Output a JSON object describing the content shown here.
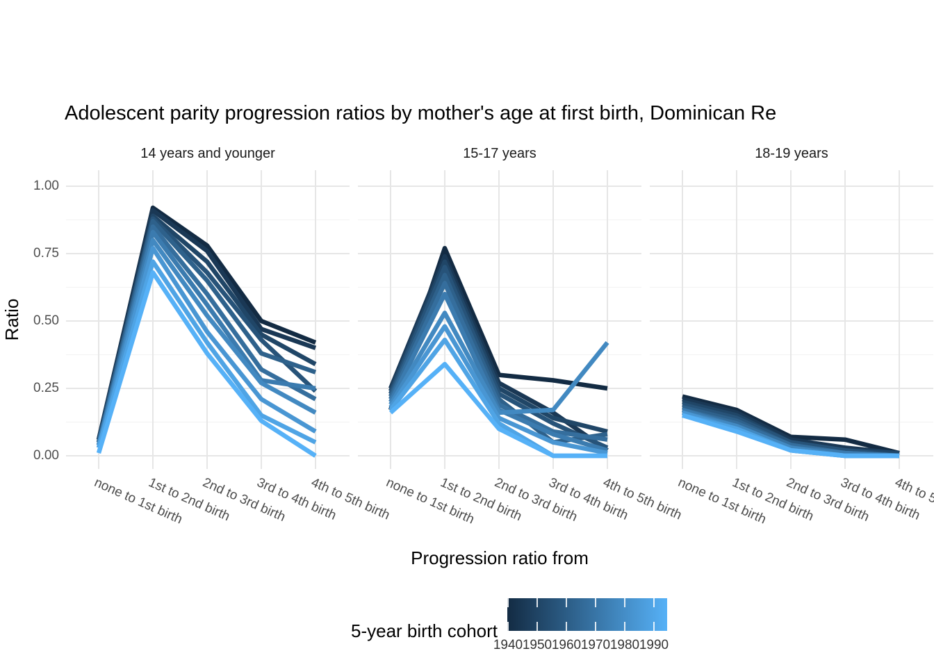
{
  "chart": {
    "title": "Adolescent parity progression ratios by mother's age at first birth,  Dominican Re",
    "xlabel": "Progression ratio from",
    "ylabel": "Ratio",
    "legend_title": "5-year birth cohort"
  },
  "chart_data": {
    "type": "line",
    "title": "Adolescent parity progression ratios by mother's age at first birth,  Dominican Re",
    "xlabel": "Progression ratio from",
    "ylabel": "Ratio",
    "categories": [
      "none to 1st birth",
      "1st to 2nd birth",
      "2nd to 3rd birth",
      "3rd to 4th birth",
      "4th to 5th birth"
    ],
    "ylim": [
      0,
      1
    ],
    "y_major_ticks": [
      0,
      0.25,
      0.5,
      0.75,
      1.0
    ],
    "y_minor_ticks": [
      0.125,
      0.375,
      0.625,
      0.875
    ],
    "y_tick_labels": [
      "0.00",
      "0.25",
      "0.50",
      "0.75",
      "1.00"
    ],
    "grid": {
      "major_color": "#E6E6E6",
      "minor_color": "#F2F2F2",
      "background": "#FFFFFF"
    },
    "legend": {
      "title": "5-year birth cohort",
      "style": "colorbar",
      "position": "bottom",
      "low_color": "#132B43",
      "high_color": "#56B1F7",
      "ticks": [
        "1940",
        "1950",
        "1960",
        "1970",
        "1980",
        "1990"
      ]
    },
    "facets": [
      {
        "label": "14 years and younger",
        "series": [
          {
            "name": "1940",
            "color": "#132B43",
            "values": [
              0.06,
              0.92,
              0.78,
              0.5,
              0.42
            ]
          },
          {
            "name": "1945",
            "color": "#1A3855",
            "values": [
              0.06,
              0.91,
              0.76,
              0.47,
              0.4
            ]
          },
          {
            "name": "1950",
            "color": "#204667",
            "values": [
              0.05,
              0.89,
              0.72,
              0.45,
              0.34
            ]
          },
          {
            "name": "1955",
            "color": "#275379",
            "values": [
              0.05,
              0.88,
              0.68,
              0.43,
              0.24
            ]
          },
          {
            "name": "1960",
            "color": "#2E618B",
            "values": [
              0.05,
              0.87,
              0.65,
              0.38,
              0.31
            ]
          },
          {
            "name": "1965",
            "color": "#356E9D",
            "values": [
              0.04,
              0.85,
              0.6,
              0.32,
              0.21
            ]
          },
          {
            "name": "1970",
            "color": "#3B7BAF",
            "values": [
              0.04,
              0.83,
              0.56,
              0.28,
              0.25
            ]
          },
          {
            "name": "1975",
            "color": "#4289C1",
            "values": [
              0.04,
              0.8,
              0.52,
              0.27,
              0.16
            ]
          },
          {
            "name": "1980",
            "color": "#4996D3",
            "values": [
              0.03,
              0.77,
              0.46,
              0.21,
              0.09
            ]
          },
          {
            "name": "1985",
            "color": "#4FA4E5",
            "values": [
              0.03,
              0.72,
              0.42,
              0.15,
              0.05
            ]
          },
          {
            "name": "1990",
            "color": "#56B1F7",
            "values": [
              0.01,
              0.68,
              0.38,
              0.13,
              0.0
            ]
          }
        ]
      },
      {
        "label": "15-17 years",
        "series": [
          {
            "name": "1940",
            "color": "#132B43",
            "values": [
              0.17,
              0.77,
              0.3,
              0.28,
              0.25
            ]
          },
          {
            "name": "1945",
            "color": "#1A3855",
            "values": [
              0.25,
              0.74,
              0.27,
              0.16,
              0.02
            ]
          },
          {
            "name": "1950",
            "color": "#204667",
            "values": [
              0.24,
              0.72,
              0.25,
              0.14,
              0.09
            ]
          },
          {
            "name": "1955",
            "color": "#275379",
            "values": [
              0.23,
              0.7,
              0.23,
              0.12,
              0.03
            ]
          },
          {
            "name": "1960",
            "color": "#2E618B",
            "values": [
              0.22,
              0.67,
              0.21,
              0.05,
              0.08
            ]
          },
          {
            "name": "1965",
            "color": "#356E9D",
            "values": [
              0.21,
              0.64,
              0.19,
              0.09,
              0.06
            ]
          },
          {
            "name": "1970",
            "color": "#3B7BAF",
            "values": [
              0.2,
              0.6,
              0.17,
              0.08,
              0.02
            ]
          },
          {
            "name": "1975",
            "color": "#4289C1",
            "values": [
              0.19,
              0.53,
              0.16,
              0.17,
              0.42
            ]
          },
          {
            "name": "1980",
            "color": "#4996D3",
            "values": [
              0.18,
              0.48,
              0.14,
              0.05,
              0.01
            ]
          },
          {
            "name": "1985",
            "color": "#4FA4E5",
            "values": [
              0.17,
              0.43,
              0.12,
              0.0,
              0.0
            ]
          },
          {
            "name": "1990",
            "color": "#56B1F7",
            "values": [
              0.16,
              0.34,
              0.1,
              0.0,
              0.0
            ]
          }
        ]
      },
      {
        "label": "18-19 years",
        "series": [
          {
            "name": "1940",
            "color": "#132B43",
            "values": [
              0.22,
              0.17,
              0.07,
              0.06,
              0.01
            ]
          },
          {
            "name": "1945",
            "color": "#1A3855",
            "values": [
              0.21,
              0.16,
              0.06,
              0.03,
              0.01
            ]
          },
          {
            "name": "1950",
            "color": "#204667",
            "values": [
              0.2,
              0.15,
              0.05,
              0.02,
              0.01
            ]
          },
          {
            "name": "1955",
            "color": "#275379",
            "values": [
              0.19,
              0.14,
              0.05,
              0.02,
              0.0
            ]
          },
          {
            "name": "1960",
            "color": "#2E618B",
            "values": [
              0.18,
              0.13,
              0.04,
              0.01,
              0.0
            ]
          },
          {
            "name": "1965",
            "color": "#356E9D",
            "values": [
              0.17,
              0.12,
              0.04,
              0.01,
              0.0
            ]
          },
          {
            "name": "1970",
            "color": "#3B7BAF",
            "values": [
              0.17,
              0.11,
              0.03,
              0.01,
              0.0
            ]
          },
          {
            "name": "1975",
            "color": "#4289C1",
            "values": [
              0.16,
              0.11,
              0.03,
              0.0,
              0.0
            ]
          },
          {
            "name": "1980",
            "color": "#4996D3",
            "values": [
              0.16,
              0.1,
              0.02,
              0.0,
              0.0
            ]
          },
          {
            "name": "1985",
            "color": "#4FA4E5",
            "values": [
              0.15,
              0.1,
              0.02,
              0.0,
              0.0
            ]
          },
          {
            "name": "1990",
            "color": "#56B1F7",
            "values": [
              0.15,
              0.09,
              0.02,
              0.0,
              0.0
            ]
          }
        ]
      }
    ]
  }
}
